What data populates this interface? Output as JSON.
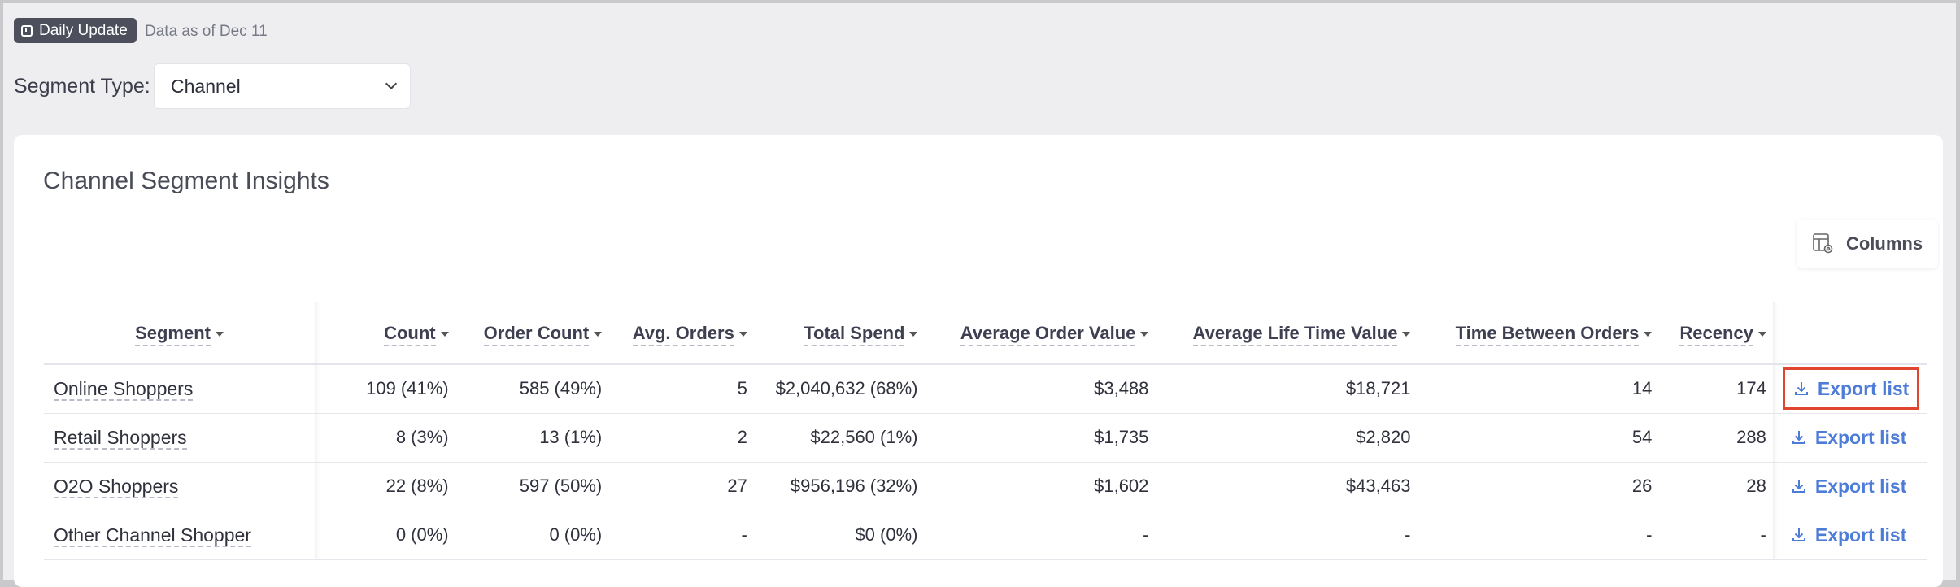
{
  "header": {
    "badge_label": "Daily Update",
    "data_as_of": "Data as of Dec 11"
  },
  "segment_type": {
    "label": "Segment Type:",
    "selected": "Channel"
  },
  "card": {
    "title": "Channel Segment Insights",
    "columns_button": "Columns"
  },
  "table": {
    "headers": [
      "Segment",
      "Count",
      "Order Count",
      "Avg. Orders",
      "Total Spend",
      "Average Order Value",
      "Average Life Time Value",
      "Time Between Orders",
      "Recency"
    ],
    "rows": [
      {
        "segment": "Online Shoppers",
        "count": "109 (41%)",
        "order_count": "585 (49%)",
        "avg_orders": "5",
        "total_spend": "$2,040,632 (68%)",
        "aov": "$3,488",
        "ltv": "$18,721",
        "tbo": "14",
        "recency": "174",
        "export": "Export list"
      },
      {
        "segment": "Retail Shoppers",
        "count": "8 (3%)",
        "order_count": "13 (1%)",
        "avg_orders": "2",
        "total_spend": "$22,560 (1%)",
        "aov": "$1,735",
        "ltv": "$2,820",
        "tbo": "54",
        "recency": "288",
        "export": "Export list"
      },
      {
        "segment": "O2O Shoppers",
        "count": "22 (8%)",
        "order_count": "597 (50%)",
        "avg_orders": "27",
        "total_spend": "$956,196 (32%)",
        "aov": "$1,602",
        "ltv": "$43,463",
        "tbo": "26",
        "recency": "28",
        "export": "Export list"
      },
      {
        "segment": "Other Channel Shopper",
        "count": "0 (0%)",
        "order_count": "0 (0%)",
        "avg_orders": "-",
        "total_spend": "$0 (0%)",
        "aov": "-",
        "ltv": "-",
        "tbo": "-",
        "recency": "-",
        "export": "Export list"
      }
    ]
  },
  "colors": {
    "accent_link": "#4c7bd8",
    "highlight_border": "#e0452f",
    "badge_bg": "#4d505c"
  },
  "icons": [
    "calendar-icon",
    "chevron-down-icon",
    "columns-settings-icon",
    "download-icon",
    "sort-caret-icon"
  ]
}
